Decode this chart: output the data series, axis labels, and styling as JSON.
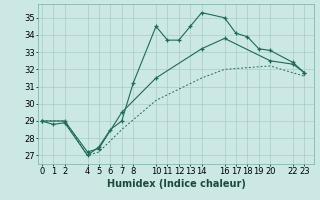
{
  "xlabel": "Humidex (Indice chaleur)",
  "bg_color": "#cce8e4",
  "grid_color": "#aaccca",
  "line_color": "#1a6b5a",
  "xticks": [
    0,
    1,
    2,
    4,
    5,
    6,
    7,
    8,
    10,
    11,
    12,
    13,
    14,
    16,
    17,
    18,
    19,
    20,
    22,
    23
  ],
  "yticks": [
    27,
    28,
    29,
    30,
    31,
    32,
    33,
    34,
    35
  ],
  "xlim": [
    -0.3,
    23.8
  ],
  "ylim": [
    26.5,
    35.8
  ],
  "curve1_x": [
    0,
    1,
    2,
    4,
    5,
    6,
    7,
    8,
    10,
    11,
    12,
    13,
    14,
    16,
    17,
    18,
    19,
    20,
    22,
    23
  ],
  "curve1_y": [
    29.0,
    28.8,
    28.9,
    27.0,
    27.5,
    28.5,
    29.0,
    31.2,
    34.5,
    33.7,
    33.7,
    34.5,
    35.3,
    35.0,
    34.1,
    33.9,
    33.2,
    33.1,
    32.4,
    31.8
  ],
  "curve2_x": [
    0,
    2,
    4,
    5,
    7,
    10,
    14,
    16,
    20,
    22,
    23
  ],
  "curve2_y": [
    29.0,
    29.0,
    27.2,
    27.4,
    29.5,
    31.5,
    33.2,
    33.8,
    32.5,
    32.3,
    31.8
  ],
  "curve3_x": [
    0,
    2,
    4,
    5,
    7,
    10,
    14,
    16,
    20,
    22,
    23
  ],
  "curve3_y": [
    29.0,
    29.0,
    27.0,
    27.2,
    28.5,
    30.2,
    31.5,
    32.0,
    32.2,
    31.8,
    31.6
  ],
  "fontsize_ticks": 6,
  "fontsize_xlabel": 7
}
